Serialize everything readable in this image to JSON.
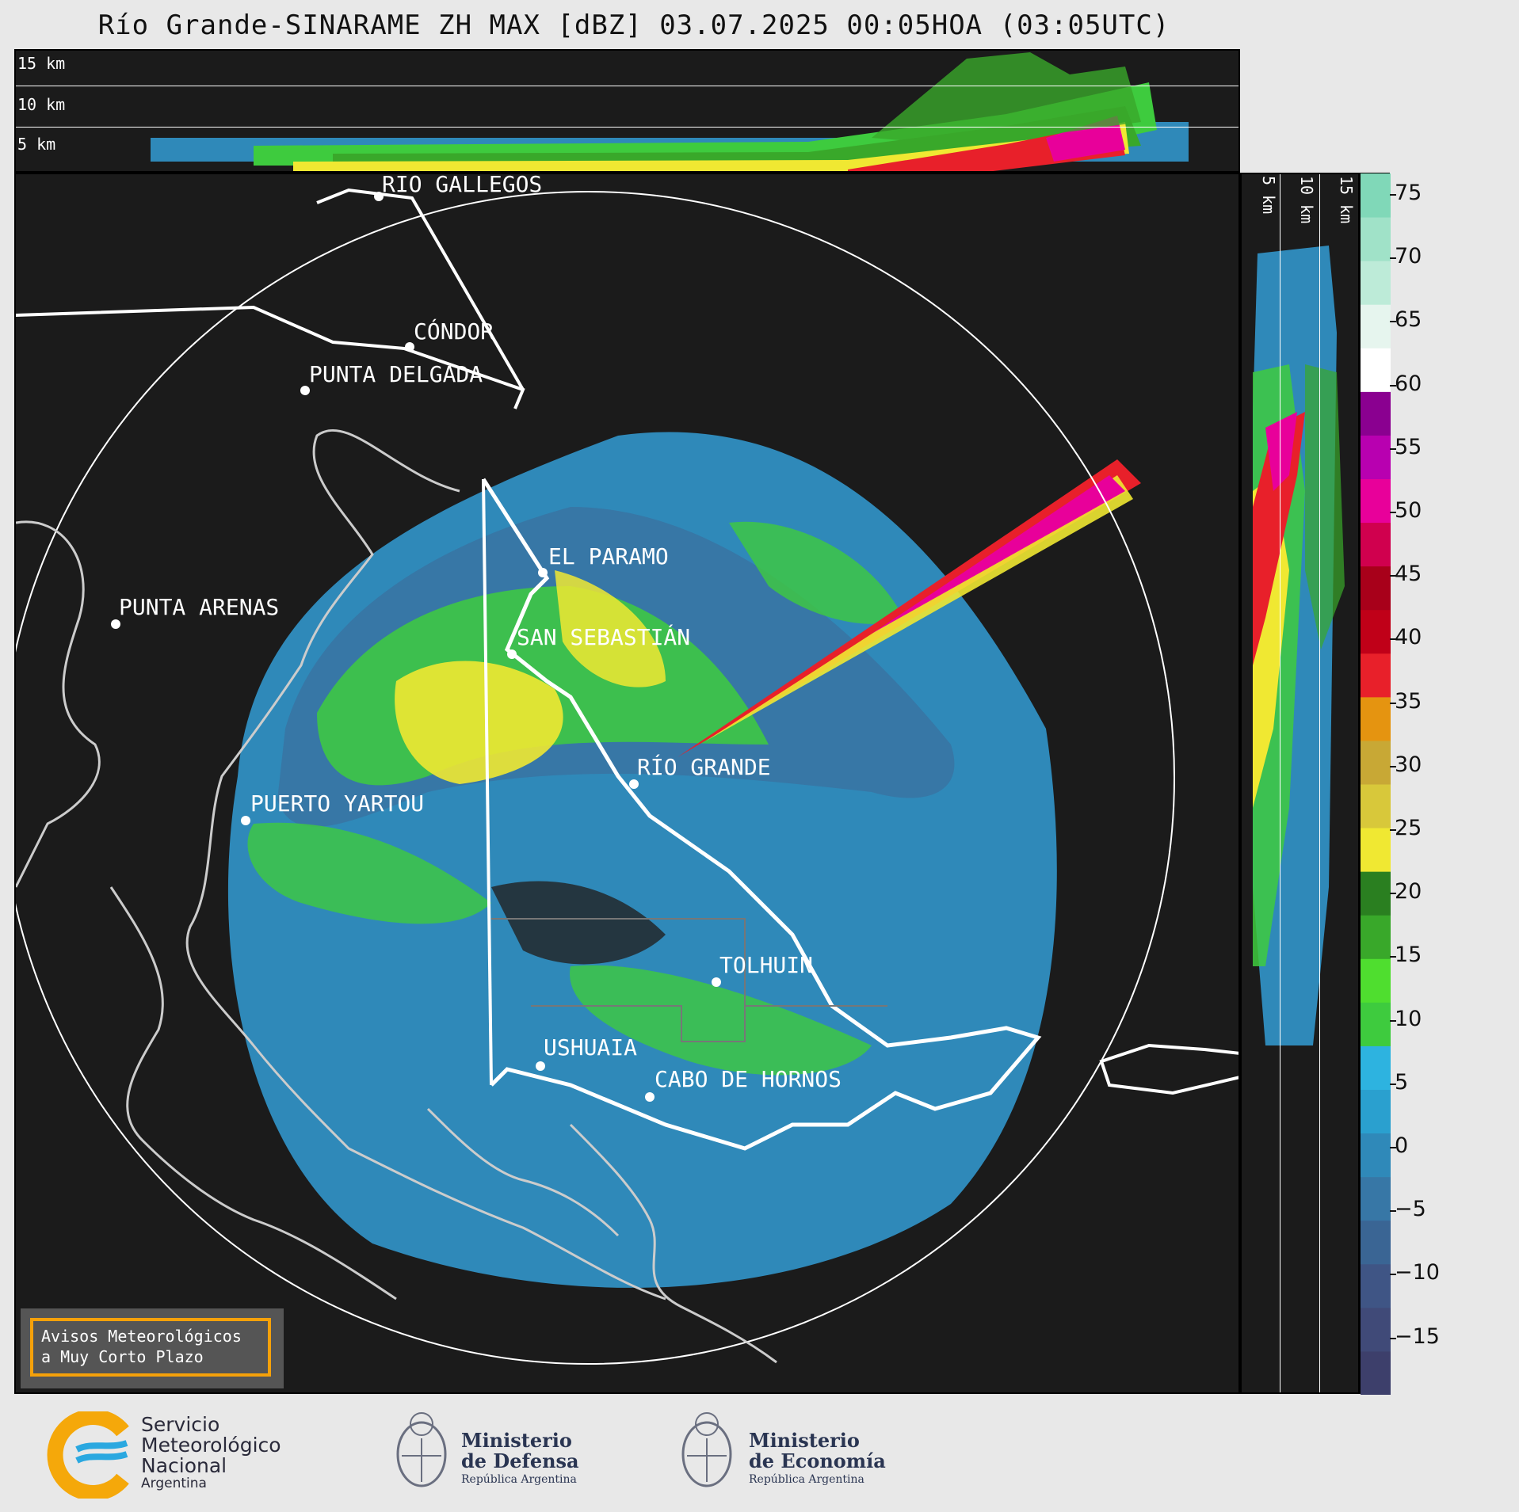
{
  "title": "Río Grande-SINARAME ZH MAX [dBZ] 03.07.2025 00:05HOA (03:05UTC)",
  "top_panel_labels": [
    "15 km",
    "10 km",
    "5 km"
  ],
  "side_panel_labels": [
    "5 km",
    "10 km",
    "15 km"
  ],
  "cities": [
    {
      "name": "RÍO GALLEGOS"
    },
    {
      "name": "CÓNDOR"
    },
    {
      "name": "PUNTA DELGADA"
    },
    {
      "name": "EL PARAMO"
    },
    {
      "name": "PUNTA ARENAS"
    },
    {
      "name": "SAN SEBASTIÁN"
    },
    {
      "name": "RÍO GRANDE"
    },
    {
      "name": "PUERTO YARTOU"
    },
    {
      "name": "TOLHUIN"
    },
    {
      "name": "USHUAIA"
    },
    {
      "name": "CABO DE HORNOS"
    }
  ],
  "colorbar": {
    "ticks": [
      "75",
      "70",
      "65",
      "60",
      "55",
      "50",
      "45",
      "40",
      "35",
      "30",
      "25",
      "20",
      "15",
      "10",
      "5",
      "0",
      "−5",
      "−10",
      "−15"
    ],
    "colors": [
      "#3d3f6b",
      "#404a78",
      "#3f5585",
      "#3a6594",
      "#3777a6",
      "#2f89b9",
      "#2aa0cf",
      "#2db3e0",
      "#3ecb3e",
      "#4fde2f",
      "#39a82a",
      "#2a7f20",
      "#f0e832",
      "#d8c83a",
      "#c8a835",
      "#e59410",
      "#e8202a",
      "#c00018",
      "#a8001a",
      "#d0004e",
      "#e8009a",
      "#b800b0",
      "#8a0090",
      "#ffffff",
      "#e6f5ee",
      "#bdebd8",
      "#a0e2c8",
      "#80d8b8"
    ]
  },
  "avisos": {
    "line1": "Avisos Meteorológicos",
    "line2": "a Muy Corto Plazo"
  },
  "logos": {
    "smn": {
      "line1": "Servicio",
      "line2": "Meteorológico",
      "line3": "Nacional",
      "line4": "Argentina"
    },
    "defensa": {
      "line1": "Ministerio",
      "line2": "de Defensa",
      "line3": "República Argentina"
    },
    "economia": {
      "line1": "Ministerio",
      "line2": "de Economía",
      "line3": "República Argentina"
    }
  },
  "colors": {
    "smn_blue": "#2aa8e0",
    "smn_yellow": "#f5a80a",
    "box_orange": "#f5a10a"
  }
}
